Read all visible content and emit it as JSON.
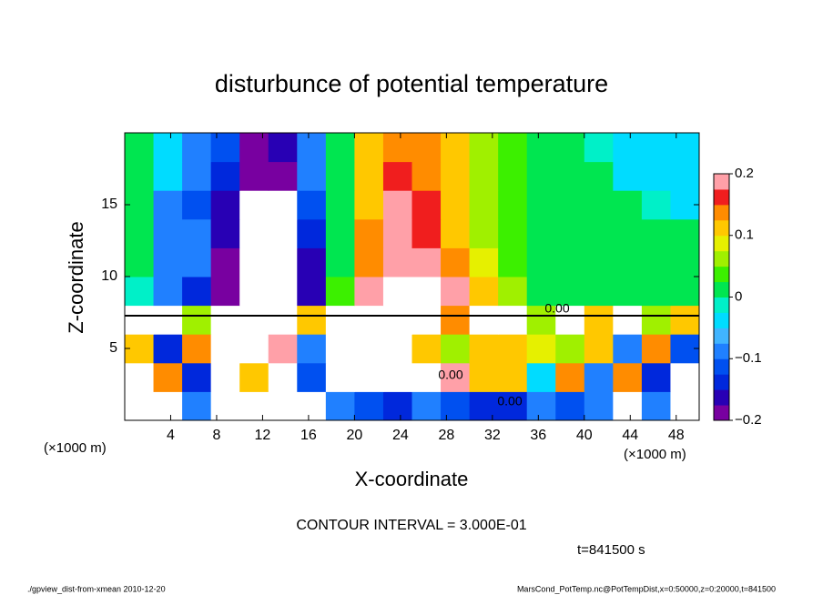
{
  "chart_data": {
    "type": "contour",
    "title": "disturbunce of potential temperature",
    "xlabel": "X-coordinate",
    "ylabel": "Z-coordinate",
    "x_unit": "(×1000 m)",
    "y_unit": "(×1000 m)",
    "contour_interval": "CONTOUR INTERVAL = 3.000E-01",
    "time_label": "t=841500 s",
    "footer_left": "./gpview_dist-from-xmean  2010-12-20",
    "footer_right": "MarsCond_PotTemp.nc@PotTempDist,x=0:50000,z=0:20000,t=841500",
    "contour_labels": [
      "0.00",
      "0.00",
      "0.00"
    ],
    "xlim": [
      0,
      50
    ],
    "ylim": [
      0,
      20
    ],
    "xticks": [
      4,
      8,
      12,
      16,
      20,
      24,
      28,
      32,
      36,
      40,
      44,
      48
    ],
    "yticks": [
      5,
      10,
      15
    ],
    "x": [
      1.25,
      3.75,
      6.25,
      8.75,
      11.25,
      13.75,
      16.25,
      18.75,
      21.25,
      23.75,
      26.25,
      28.75,
      31.25,
      33.75,
      36.25,
      38.75,
      41.25,
      43.75,
      46.25,
      48.75
    ],
    "y": [
      1,
      3,
      5,
      7,
      9,
      11,
      13,
      15,
      17,
      19
    ],
    "values": [
      [
        0.3,
        0.3,
        -0.1,
        0.3,
        0.3,
        0.3,
        0.3,
        -0.1,
        -0.12,
        -0.15,
        -0.1,
        -0.12,
        -0.15,
        -0.15,
        -0.1,
        -0.12,
        -0.1,
        0.3,
        -0.1,
        0.3
      ],
      [
        -0.3,
        0.15,
        -0.15,
        0.3,
        0.1,
        0.3,
        -0.12,
        0.3,
        0.3,
        0.3,
        0.3,
        0.2,
        0.12,
        0.1,
        -0.05,
        0.15,
        -0.1,
        0.15,
        -0.15,
        0.3
      ],
      [
        0.1,
        -0.15,
        0.15,
        0.3,
        -0.3,
        0.2,
        -0.1,
        0.3,
        0.3,
        0.3,
        0.12,
        0.05,
        0.1,
        0.12,
        0.08,
        0.05,
        0.12,
        -0.1,
        0.15,
        -0.12
      ],
      [
        0.3,
        0.3,
        0.05,
        0.3,
        -0.3,
        0.3,
        0.1,
        0.3,
        0.3,
        0.3,
        0.3,
        0.15,
        0.3,
        0.3,
        0.05,
        0.3,
        0.1,
        0.3,
        0.05,
        0.1
      ],
      [
        -0.02,
        -0.1,
        -0.13,
        -0.18,
        -0.25,
        -0.25,
        -0.16,
        0.03,
        0.19,
        0.25,
        0.25,
        0.18,
        0.1,
        0.05,
        0.02,
        0.01,
        0,
        0,
        0,
        0
      ],
      [
        0,
        -0.1,
        -0.1,
        -0.18,
        -0.25,
        -0.25,
        -0.16,
        0.02,
        0.15,
        0.2,
        0.19,
        0.14,
        0.08,
        0.04,
        0.02,
        0.01,
        0,
        0,
        0,
        0
      ],
      [
        0,
        -0.1,
        -0.08,
        -0.16,
        -0.25,
        -0.25,
        -0.14,
        0.01,
        0.13,
        0.19,
        0.17,
        0.12,
        0.07,
        0.03,
        0.01,
        0,
        0,
        0,
        0,
        0
      ],
      [
        0,
        -0.08,
        -0.12,
        -0.17,
        -0.25,
        -0.25,
        -0.12,
        0.01,
        0.12,
        0.18,
        0.16,
        0.11,
        0.06,
        0.03,
        0.01,
        0,
        0,
        0,
        -0.02,
        -0.03
      ],
      [
        0,
        -0.05,
        -0.1,
        -0.15,
        -0.19,
        -0.18,
        -0.1,
        0,
        0.11,
        0.16,
        0.15,
        0.1,
        0.06,
        0.03,
        0.01,
        0,
        0,
        -0.03,
        -0.04,
        -0.04
      ],
      [
        0,
        -0.03,
        -0.08,
        -0.12,
        -0.18,
        -0.17,
        -0.1,
        0,
        0.1,
        0.15,
        0.14,
        0.1,
        0.06,
        0.03,
        0.01,
        0,
        -0.02,
        -0.04,
        -0.05,
        -0.05
      ]
    ],
    "clim": [
      -0.2,
      0.2
    ],
    "colors": [
      "#7800a0",
      "#2800b4",
      "#0028dc",
      "#0050f0",
      "#2080ff",
      "#40b4ff",
      "#00dcff",
      "#00f0c8",
      "#00e650",
      "#3cf000",
      "#a0f000",
      "#e6f000",
      "#ffc800",
      "#ff8c00",
      "#f01e1e",
      "#ffa0a8"
    ],
    "out_of_range_color": "#ffffff",
    "cticks": [
      {
        "value": -0.2,
        "label": "−0.2"
      },
      {
        "value": -0.1,
        "label": "−0.1"
      },
      0,
      0.1,
      0.2
    ]
  }
}
